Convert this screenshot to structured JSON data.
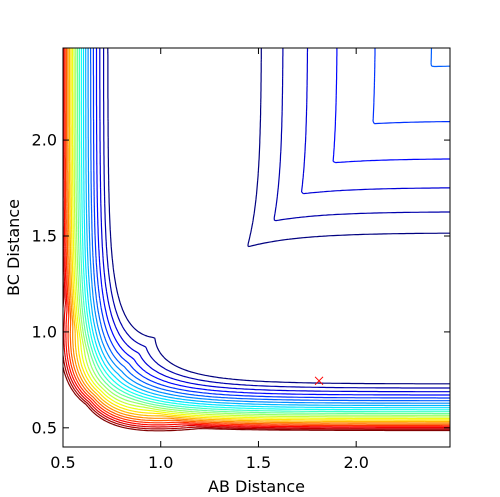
{
  "chart_data": {
    "type": "contour",
    "title": "",
    "xlabel": "AB Distance",
    "ylabel": "BC Distance",
    "xlim": [
      0.5,
      2.48
    ],
    "ylim": [
      0.4,
      2.48
    ],
    "grid": false,
    "legend": "none",
    "x_ticks": [
      {
        "value": 0.5,
        "label": "0.5"
      },
      {
        "value": 1.0,
        "label": "1.0"
      },
      {
        "value": 1.5,
        "label": "1.5"
      },
      {
        "value": 2.0,
        "label": "2.0"
      }
    ],
    "y_ticks": [
      {
        "value": 0.5,
        "label": "0.5"
      },
      {
        "value": 1.0,
        "label": "1.0"
      },
      {
        "value": 1.5,
        "label": "1.5"
      },
      {
        "value": 2.0,
        "label": "2.0"
      }
    ],
    "colormap": "jet",
    "contour_levels": 24,
    "surface": {
      "kind": "symmetric Morse-like potential energy surface",
      "r_equilibrium": 0.74,
      "well_depth": 1.0,
      "morse_alpha": 1.9,
      "repulsion_coefficient": 0.6
    },
    "marker": {
      "x": 1.81,
      "y": 0.745,
      "symbol": "x",
      "color": "#ff0000"
    }
  }
}
